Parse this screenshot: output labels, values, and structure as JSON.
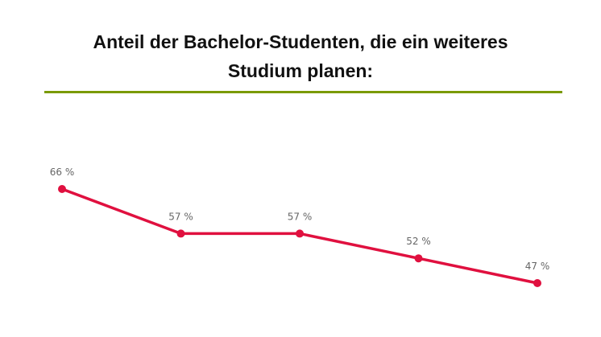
{
  "chart_data": {
    "type": "line",
    "title": "Anteil der Bachelor-Studenten, die ein weiteres Studium planen:",
    "categories": [
      null,
      null,
      null,
      null,
      null
    ],
    "series": [
      {
        "color": "#e0103f",
        "values": [
          66,
          57,
          57,
          52,
          47
        ],
        "value_labels": [
          "66 %",
          "57 %",
          "57 %",
          "52 %",
          "47 %"
        ]
      }
    ]
  }
}
